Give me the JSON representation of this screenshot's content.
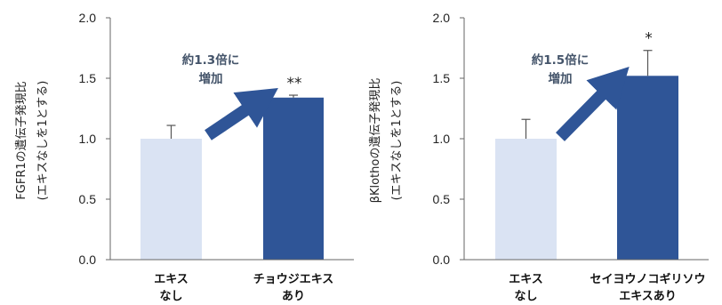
{
  "chart_data": [
    {
      "type": "bar",
      "ylabel": "FGFR1の遺伝子発現比",
      "ylabel_sub": "(エキスなしを1とする)",
      "ylim": [
        0,
        2.0
      ],
      "yticks": [
        "0.0",
        "0.5",
        "1.0",
        "1.5",
        "2.0"
      ],
      "categories": [
        [
          "エキス",
          "なし"
        ],
        [
          "チョウジエキス",
          "あり"
        ]
      ],
      "values": [
        1.0,
        1.34
      ],
      "errors": [
        0.11,
        0.02
      ],
      "bar_colors": [
        "#dae3f3",
        "#2f5597"
      ],
      "significance": [
        "",
        "**"
      ],
      "annotation": [
        "約1.3倍に",
        "増加"
      ],
      "annotation_color": "#44546a",
      "arrow_color": "#2f5597"
    },
    {
      "type": "bar",
      "ylabel": "βKlothoの遺伝子発現比",
      "ylabel_sub": "(エキスなしを1とする)",
      "ylim": [
        0,
        2.0
      ],
      "yticks": [
        "0.0",
        "0.5",
        "1.0",
        "1.5",
        "2.0"
      ],
      "categories": [
        [
          "エキス",
          "なし"
        ],
        [
          "セイヨウノコギリソウ",
          "エキスあり"
        ]
      ],
      "values": [
        1.0,
        1.52
      ],
      "errors": [
        0.16,
        0.21
      ],
      "bar_colors": [
        "#dae3f3",
        "#2f5597"
      ],
      "significance": [
        "",
        "*"
      ],
      "annotation": [
        "約1.5倍に",
        "増加"
      ],
      "annotation_color": "#44546a",
      "arrow_color": "#2f5597"
    }
  ]
}
